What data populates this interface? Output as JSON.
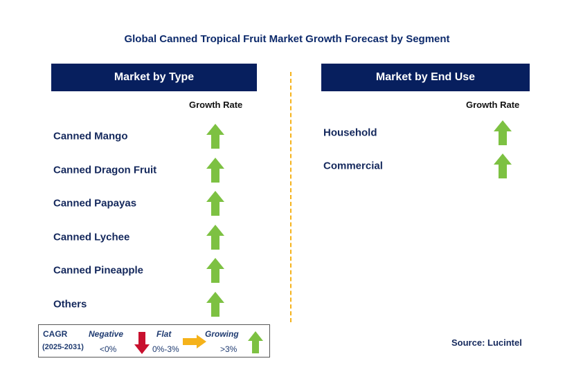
{
  "title": "Global Canned Tropical Fruit Market Growth Forecast by Segment",
  "left_panel": {
    "header": "Market by Type",
    "column_label": "Growth Rate",
    "rows": [
      {
        "label": "Canned Mango",
        "trend": "growing"
      },
      {
        "label": "Canned Dragon Fruit",
        "trend": "growing"
      },
      {
        "label": "Canned Papayas",
        "trend": "growing"
      },
      {
        "label": "Canned Lychee",
        "trend": "growing"
      },
      {
        "label": "Canned Pineapple",
        "trend": "growing"
      },
      {
        "label": "Others",
        "trend": "growing"
      }
    ]
  },
  "right_panel": {
    "header": "Market by End Use",
    "column_label": "Growth Rate",
    "rows": [
      {
        "label": "Household",
        "trend": "growing"
      },
      {
        "label": "Commercial",
        "trend": "growing"
      }
    ]
  },
  "legend": {
    "cagr_label": "CAGR",
    "period": "(2025-2031)",
    "negative": {
      "label": "Negative",
      "range": "<0%"
    },
    "flat": {
      "label": "Flat",
      "range": "0%-3%"
    },
    "growing": {
      "label": "Growing",
      "range": ">3%"
    }
  },
  "source": "Source: Lucintel",
  "colors": {
    "header_bg": "#071f5e",
    "growing": "#7dc142",
    "negative": "#c8102e",
    "flat": "#f5b21a",
    "divider": "#f5b21a"
  }
}
